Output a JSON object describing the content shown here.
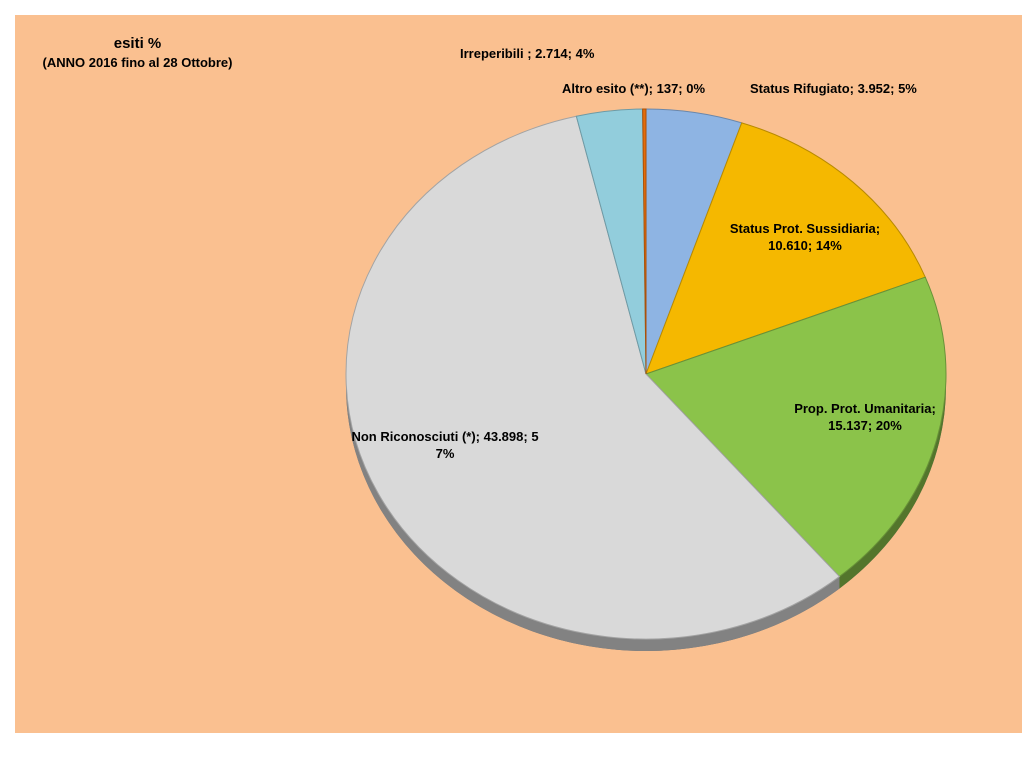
{
  "chart_data": {
    "type": "pie",
    "title": "esiti %",
    "subtitle": "(ANNO 2016 fino al 28 Ottobre)",
    "categories": [
      "Status Rifugiato",
      "Status Prot. Sussidiaria",
      "Prop. Prot. Umanitaria",
      "Non Riconosciuti (*)",
      "Irreperibili",
      "Altro esito (**)"
    ],
    "values": [
      3952,
      10610,
      15137,
      43898,
      2714,
      137
    ],
    "percent_labels": [
      "5%",
      "14%",
      "20%",
      "57%",
      "4%",
      "0%"
    ],
    "data_labels": [
      "Status Rifugiato; 3.952; 5%",
      "Status Prot. Sussidiaria; 10.610; 14%",
      "Prop. Prot. Umanitaria; 15.137; 20%",
      "Non Riconosciuti (*); 43.898; 57%",
      "Irreperibili ; 2.714; 4%",
      "Altro esito (**); 137; 0%"
    ],
    "colors": [
      "#8eb4e3",
      "#f5b800",
      "#8bc34a",
      "#d9d9d9",
      "#92cddc",
      "#e46c0a"
    ],
    "legend": "none",
    "background": "#fac090"
  }
}
